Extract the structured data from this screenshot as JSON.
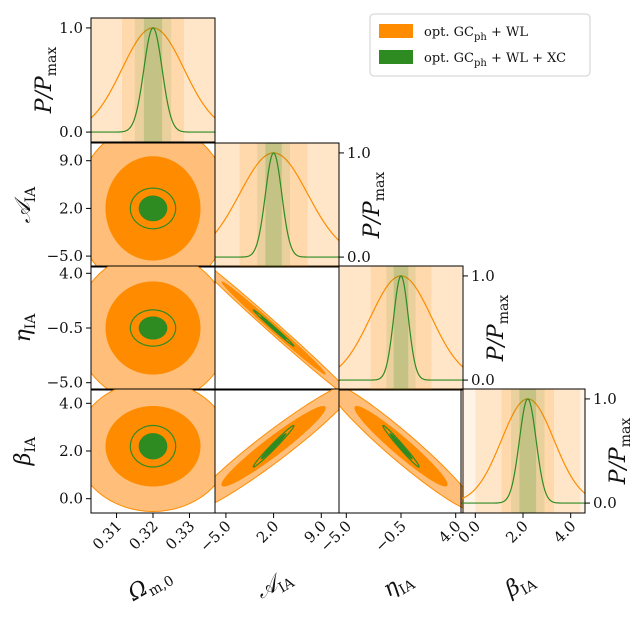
{
  "chart_data": {
    "type": "corner",
    "title": "",
    "parameters": [
      {
        "symbol": "Ω",
        "sub": "m,0",
        "fiducial": 0.32,
        "display_range": [
          0.303,
          0.337
        ],
        "ticks": [
          0.31,
          0.32,
          0.33
        ],
        "tick_labels": [
          "0.31",
          "0.32",
          "0.33"
        ]
      },
      {
        "symbol": "𝒜",
        "sub": "IA",
        "fiducial": 2.0,
        "display_range": [
          -6.6,
          11.6
        ],
        "ticks": [
          -5.0,
          2.0,
          9.0
        ],
        "tick_labels": [
          "−5.0",
          "2.0",
          "9.0"
        ]
      },
      {
        "symbol": "η",
        "sub": "IA",
        "fiducial": -0.5,
        "display_range": [
          -5.6,
          4.6
        ],
        "ticks": [
          -5.0,
          -0.5,
          4.0
        ],
        "tick_labels": [
          "−5.0",
          "−0.5",
          "4.0"
        ]
      },
      {
        "symbol": "β",
        "sub": "IA",
        "fiducial": 2.2,
        "display_range": [
          -0.6,
          4.6
        ],
        "ticks": [
          0.0,
          2.0,
          4.0
        ],
        "tick_labels": [
          "0.0",
          "2.0",
          "4.0"
        ]
      }
    ],
    "diagonal_ylabel": {
      "main": "P/P",
      "sub": "max"
    },
    "diagonal_yticks": [
      "0.0",
      "1.0"
    ],
    "series": [
      {
        "name": "opt. GCph + WL",
        "legend_label": "opt. GC",
        "legend_sub": "ph",
        "legend_suffix": " + WL",
        "color": "#ff8c00",
        "fill_inner": "#ff8c00",
        "fill_outer": "#ffbf7a",
        "sigma": [
          0.0085,
          5.0,
          2.5,
          1.1
        ],
        "correlations": [
          [
            1,
            0,
            0,
            0
          ],
          [
            0,
            1,
            -0.995,
            0.96
          ],
          [
            0,
            -0.995,
            1,
            -0.96
          ],
          [
            0,
            0.96,
            -0.96,
            1
          ]
        ]
      },
      {
        "name": "opt. GCph + WL + XC",
        "legend_label": "opt. GC",
        "legend_sub": "ph",
        "legend_suffix": " + WL + XC",
        "color": "#2e8b22",
        "fill_inner": "#2e8b22",
        "fill_outer": "#c9e6c0",
        "sigma": [
          0.0025,
          1.2,
          0.6,
          0.35
        ],
        "correlations": [
          [
            1,
            0,
            0,
            0
          ],
          [
            0,
            1,
            -0.995,
            0.985
          ],
          [
            0,
            -0.995,
            1,
            -0.985
          ],
          [
            0,
            0.985,
            -0.985,
            1
          ]
        ]
      }
    ]
  }
}
